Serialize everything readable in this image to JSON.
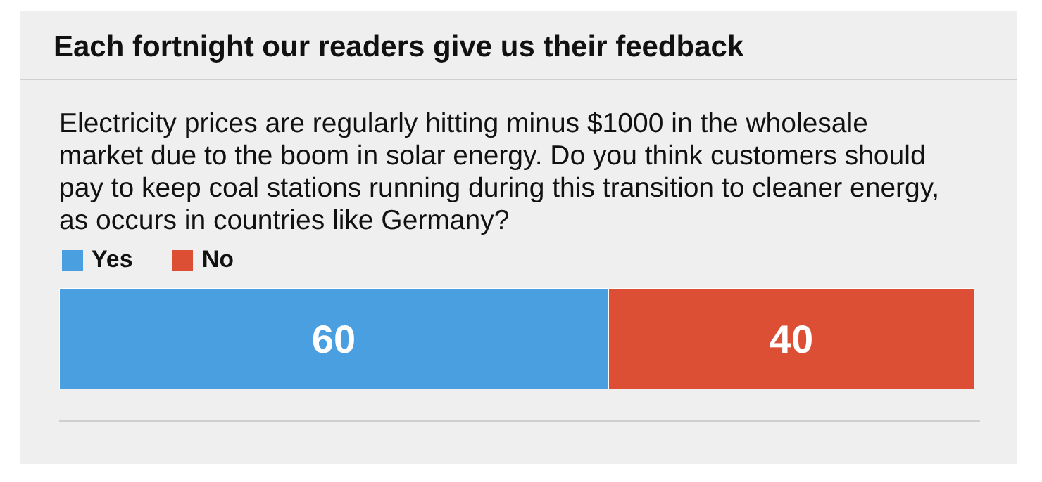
{
  "chart_data": {
    "type": "bar",
    "title": "Each fortnight our readers give us their feedback",
    "subtitle": "Electricity prices are regularly hitting minus $1000 in the wholesale market due to the boom in solar energy. Do you think customers should pay to keep coal stations running during this transition to cleaner energy, as occurs in countries like Germany?",
    "categories": [
      null
    ],
    "orientation": "horizontal",
    "stacked": true,
    "data_labels": true,
    "legend": "top left",
    "tick_labels": false,
    "series": [
      {
        "name": "Yes",
        "color": "#4a9fe0",
        "values": [
          60
        ]
      },
      {
        "name": "No",
        "color": "#dc4f35",
        "values": [
          40
        ]
      }
    ]
  }
}
